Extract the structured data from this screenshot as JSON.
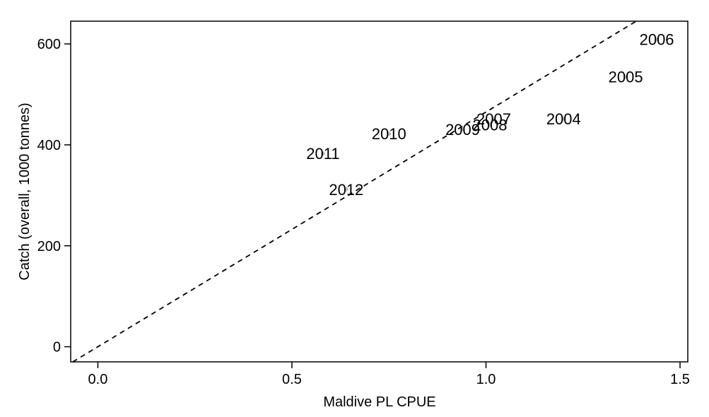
{
  "chart_data": {
    "type": "scatter",
    "title": "",
    "xlabel": "Maldive PL CPUE",
    "ylabel": "Catch (overall, 1000 tonnes)",
    "xlim": [
      -0.07,
      1.52
    ],
    "ylim": [
      -30,
      645
    ],
    "xticks": [
      0.0,
      0.5,
      1.0,
      1.5
    ],
    "xtick_labels": [
      "0.0",
      "0.5",
      "1.0",
      "1.5"
    ],
    "yticks": [
      0,
      200,
      400,
      600
    ],
    "ytick_labels": [
      "0",
      "200",
      "400",
      "600"
    ],
    "grid": false,
    "legend": "none",
    "points": [
      {
        "label": "2004",
        "x": 1.2,
        "y": 452
      },
      {
        "label": "2005",
        "x": 1.36,
        "y": 535
      },
      {
        "label": "2006",
        "x": 1.44,
        "y": 609
      },
      {
        "label": "2007",
        "x": 1.02,
        "y": 452
      },
      {
        "label": "2008",
        "x": 1.01,
        "y": 440
      },
      {
        "label": "2009",
        "x": 0.94,
        "y": 431
      },
      {
        "label": "2010",
        "x": 0.75,
        "y": 422
      },
      {
        "label": "2011",
        "x": 0.58,
        "y": 383
      },
      {
        "label": "2012",
        "x": 0.64,
        "y": 312
      }
    ],
    "reference_line": {
      "style": "dashed",
      "intercept": 0,
      "slope": 465
    }
  }
}
